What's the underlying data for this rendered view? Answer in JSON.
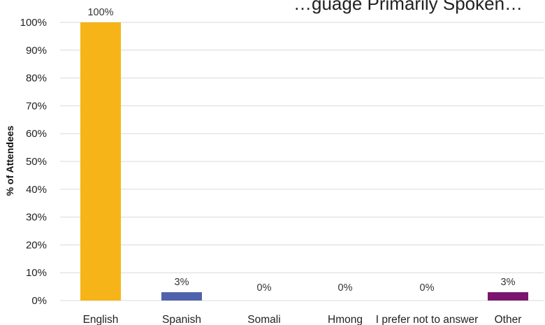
{
  "chart_data": {
    "type": "bar",
    "title": "…guage Primarily Spoken…",
    "ylabel": "% of Attendees",
    "xlabel": "",
    "categories": [
      "English",
      "Spanish",
      "Somali",
      "Hmong",
      "I prefer not to answer",
      "Other"
    ],
    "values": [
      100,
      3,
      0,
      0,
      0,
      3
    ],
    "data_labels": [
      "100%",
      "3%",
      "0%",
      "0%",
      "0%",
      "3%"
    ],
    "ylim": [
      0,
      100
    ],
    "yticks": [
      0,
      10,
      20,
      30,
      40,
      50,
      60,
      70,
      80,
      90,
      100
    ],
    "ytick_labels": [
      "0%",
      "10%",
      "20%",
      "30%",
      "40%",
      "50%",
      "60%",
      "70%",
      "80%",
      "90%",
      "100%"
    ],
    "colors": [
      "#f6b418",
      "#4f63ac",
      "#7a7a7a",
      "#7a7a7a",
      "#7a7a7a",
      "#7b166e"
    ],
    "grid": true,
    "legend": "none"
  }
}
